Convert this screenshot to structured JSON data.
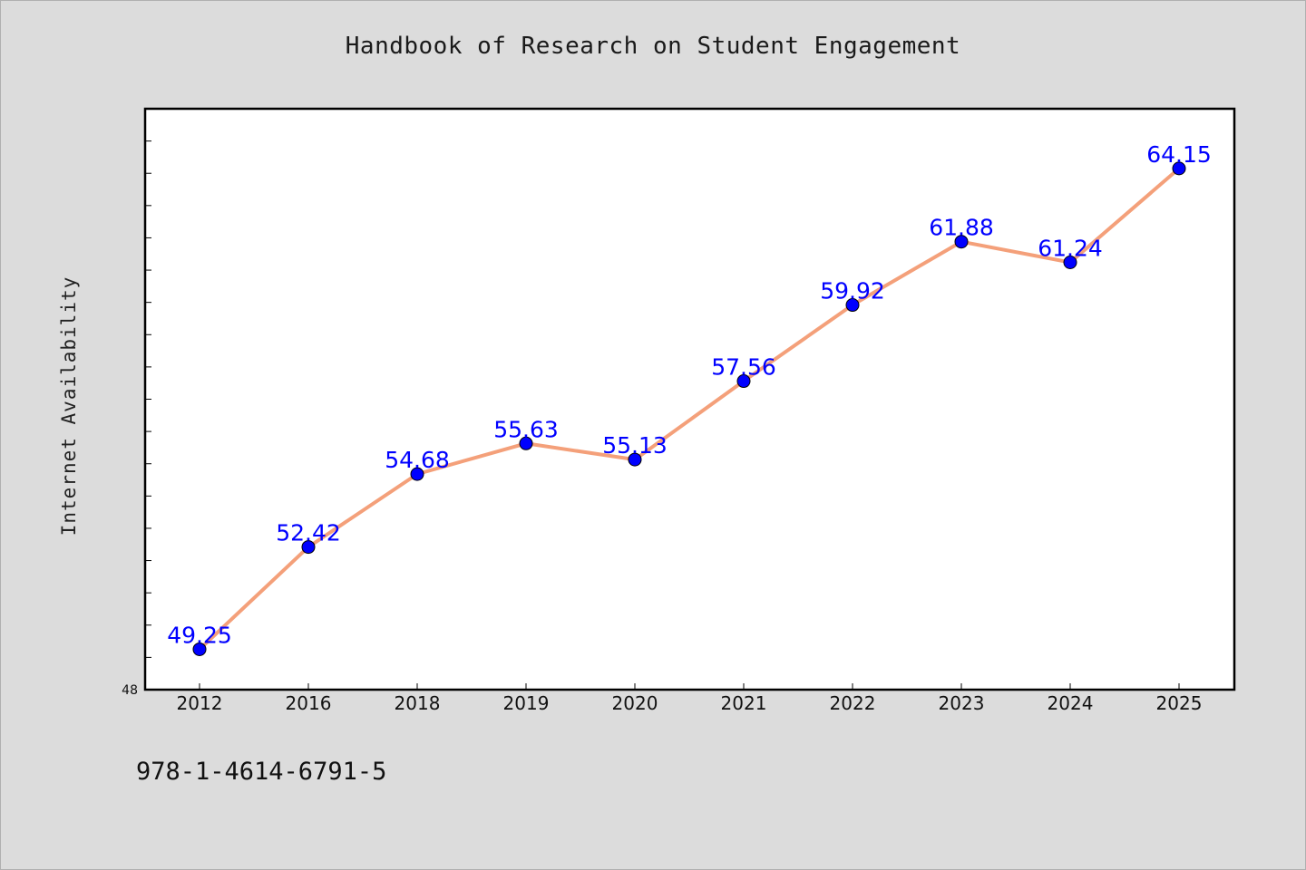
{
  "chart_data": {
    "type": "line",
    "title": "Handbook of Research on Student Engagement",
    "xlabel": "",
    "ylabel": "Internet Availability",
    "categories": [
      "2012",
      "2016",
      "2018",
      "2019",
      "2020",
      "2021",
      "2022",
      "2023",
      "2024",
      "2025"
    ],
    "series": [
      {
        "values": [
          49.25,
          52.42,
          54.68,
          55.63,
          55.13,
          57.56,
          59.92,
          61.88,
          61.24,
          64.15
        ],
        "labels": [
          "49.25",
          "52.42",
          "54.68",
          "55.63",
          "55.13",
          "57.56",
          "59.92",
          "61.88",
          "61.24",
          "64.15"
        ],
        "line_color": "#f4a07a",
        "marker_color": "#0000ff"
      }
    ],
    "ylim": [
      48,
      66
    ],
    "y_tick_labels": [
      "48"
    ],
    "grid": false,
    "legend": "none"
  },
  "footer": {
    "isbn": "978-1-4614-6791-5"
  }
}
